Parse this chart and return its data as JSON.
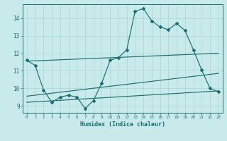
{
  "xlabel": "Humidex (Indice chaleur)",
  "bg_color": "#c8eaea",
  "line_color": "#1a7070",
  "grid_color": "#a8d8d8",
  "xlim": [
    -0.5,
    23.5
  ],
  "ylim": [
    8.6,
    14.8
  ],
  "xticks": [
    0,
    1,
    2,
    3,
    4,
    5,
    6,
    7,
    8,
    9,
    10,
    11,
    12,
    13,
    14,
    15,
    16,
    17,
    18,
    19,
    20,
    21,
    22,
    23
  ],
  "yticks": [
    9,
    10,
    11,
    12,
    13,
    14
  ],
  "zigzag_x": [
    0,
    1,
    2,
    3,
    4,
    5,
    6,
    7,
    8,
    9,
    10,
    11,
    12,
    13,
    14,
    15,
    16,
    17,
    18,
    19,
    20,
    21,
    22,
    23
  ],
  "zigzag_y": [
    11.6,
    11.3,
    9.9,
    9.2,
    9.5,
    9.6,
    9.5,
    8.85,
    9.3,
    10.3,
    11.6,
    11.75,
    12.2,
    14.4,
    14.55,
    13.85,
    13.5,
    13.35,
    13.7,
    13.3,
    12.2,
    11.05,
    10.0,
    9.8
  ],
  "trend1_x": [
    0,
    23
  ],
  "trend1_y": [
    11.55,
    12.0
  ],
  "trend2_x": [
    0,
    23
  ],
  "trend2_y": [
    9.55,
    10.85
  ],
  "trend3_x": [
    0,
    23
  ],
  "trend3_y": [
    9.2,
    9.85
  ]
}
